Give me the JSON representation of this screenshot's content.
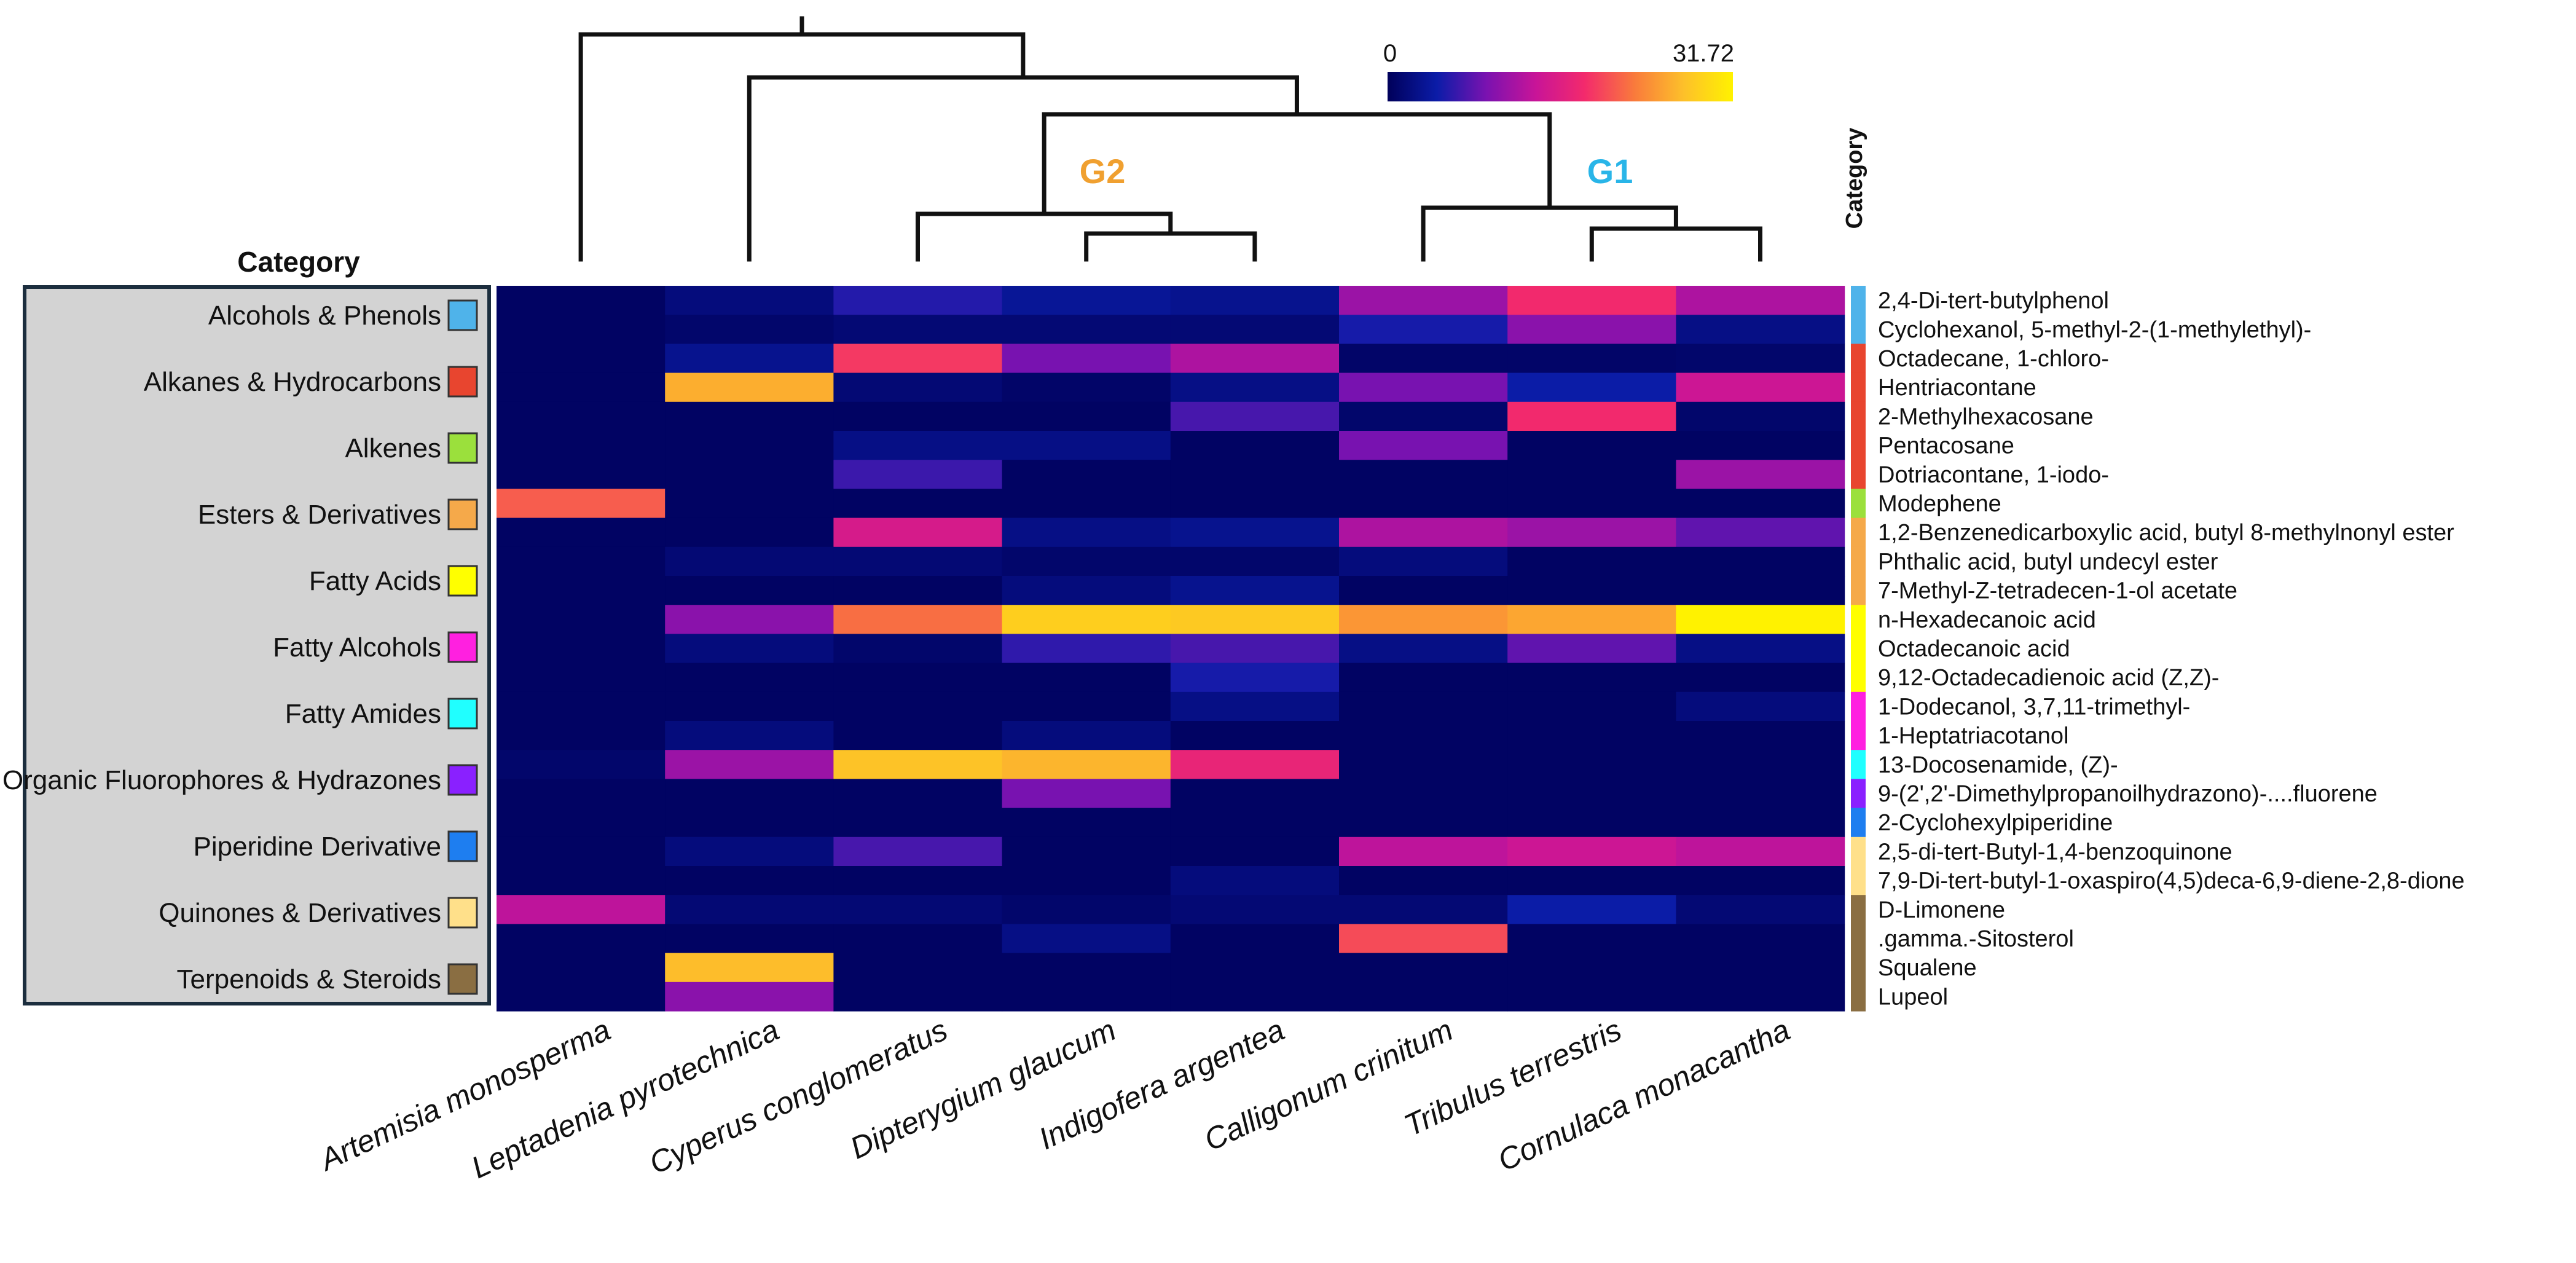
{
  "chart_data": {
    "type": "heatmap",
    "title": "",
    "colorbar": {
      "min_label": "0",
      "max_label": "31.72",
      "min": 0,
      "max": 31.72
    },
    "legend_title": "Category",
    "side_label": "Category",
    "group_labels": [
      {
        "label": "G2",
        "color": "#f0a030"
      },
      {
        "label": "G1",
        "color": "#29b5e8"
      }
    ],
    "columns": [
      "Artemisia monosperma",
      "Leptadenia pyrotechnica",
      "Cyperus conglomeratus",
      "Dipterygium glaucum",
      "Indigofera argentea",
      "Calligonum crinitum",
      "Tribulus terrestris",
      "Cornulaca monacantha"
    ],
    "rows": [
      "2,4-Di-tert-butylphenol",
      "Cyclohexanol, 5-methyl-2-(1-methylethyl)-",
      "Octadecane, 1-chloro-",
      "Hentriacontane",
      "2-Methylhexacosane",
      "Pentacosane",
      "Dotriacontane, 1-iodo-",
      "Modephene",
      "1,2-Benzenedicarboxylic  acid, butyl 8-methylnonyl  ester",
      "Phthalic acid, butyl undecyl  ester",
      "7-Methyl-Z-tetradecen-1-ol  acetate",
      "n-Hexadecanoic  acid",
      "Octadecanoic acid",
      "9,12-Octadecadienoic acid (Z,Z)-",
      "1-Dodecanol, 3,7,11-trimethyl-",
      "1-Heptatriacotanol",
      "13-Docosenamide, (Z)-",
      "9-(2',2'-Dimethylpropanoilhydrazono)-....fluorene",
      "2-Cyclohexylpiperidine",
      "2,5-di-tert-Butyl-1,4-benzoquinone",
      "7,9-Di-tert-butyl-1-oxaspiro(4,5)deca-6,9-diene-2,8-dione",
      "D-Limonene",
      ".gamma.-Sitosterol",
      "Squalene",
      "Lupeol"
    ],
    "values": [
      [
        0.5,
        2.0,
        5.5,
        3.5,
        3.0,
        11.0,
        18.0,
        12.0
      ],
      [
        0.5,
        1.0,
        1.5,
        1.5,
        1.5,
        5.0,
        10.0,
        2.5
      ],
      [
        0.5,
        3.0,
        19.0,
        9.0,
        12.0,
        0.8,
        0.8,
        1.0
      ],
      [
        0.5,
        26.0,
        1.5,
        0.8,
        2.5,
        9.0,
        4.5,
        14.0
      ],
      [
        0.5,
        0.5,
        0.5,
        0.5,
        7.0,
        1.0,
        18.0,
        1.0
      ],
      [
        0.5,
        0.5,
        2.5,
        2.5,
        0.5,
        9.0,
        0.5,
        0.5
      ],
      [
        0.5,
        0.5,
        6.5,
        0.5,
        0.5,
        0.5,
        0.5,
        11.0
      ],
      [
        21.0,
        0.5,
        0.5,
        0.5,
        0.5,
        0.5,
        0.5,
        0.5
      ],
      [
        0.5,
        0.5,
        15.0,
        2.5,
        3.0,
        12.0,
        11.0,
        8.0
      ],
      [
        0.5,
        1.5,
        1.5,
        1.0,
        1.0,
        2.0,
        0.5,
        0.5
      ],
      [
        0.5,
        0.5,
        0.5,
        2.0,
        3.0,
        0.5,
        0.5,
        0.5
      ],
      [
        0.5,
        10.0,
        22.0,
        28.5,
        28.0,
        24.5,
        25.5,
        31.7
      ],
      [
        0.5,
        2.0,
        1.0,
        6.0,
        7.0,
        2.5,
        8.0,
        2.5
      ],
      [
        0.5,
        0.5,
        0.5,
        0.5,
        5.0,
        0.5,
        0.5,
        0.5
      ],
      [
        0.5,
        0.5,
        0.5,
        0.5,
        2.5,
        0.5,
        0.5,
        2.0
      ],
      [
        0.5,
        2.0,
        0.5,
        2.0,
        0.5,
        0.5,
        0.5,
        0.5
      ],
      [
        1.0,
        11.0,
        27.5,
        26.5,
        17.0,
        0.5,
        0.5,
        0.5
      ],
      [
        0.5,
        0.5,
        0.5,
        9.0,
        0.5,
        0.5,
        0.5,
        0.5
      ],
      [
        0.5,
        0.5,
        0.5,
        0.5,
        0.5,
        0.5,
        0.5,
        0.5
      ],
      [
        0.5,
        2.0,
        7.0,
        0.5,
        0.5,
        13.0,
        14.0,
        13.0
      ],
      [
        0.5,
        0.5,
        0.5,
        0.5,
        2.0,
        0.5,
        0.5,
        0.5
      ],
      [
        13.0,
        1.5,
        1.5,
        1.0,
        1.5,
        1.5,
        4.5,
        1.5
      ],
      [
        0.5,
        0.5,
        0.5,
        2.5,
        0.5,
        20.0,
        0.5,
        0.5
      ],
      [
        0.5,
        27.0,
        0.5,
        0.5,
        0.5,
        0.5,
        0.5,
        0.5
      ],
      [
        0.5,
        10.0,
        0.5,
        0.5,
        0.5,
        0.5,
        0.5,
        0.5
      ]
    ],
    "row_category_colors": [
      "#4fb3ea",
      "#4fb3ea",
      "#e8452f",
      "#e8452f",
      "#e8452f",
      "#e8452f",
      "#e8452f",
      "#9be03c",
      "#f5a94a",
      "#f5a94a",
      "#f5a94a",
      "#ffff00",
      "#ffff00",
      "#ffff00",
      "#ff20e0",
      "#ff20e0",
      "#20ffff",
      "#8a20ff",
      "#1e7ef0",
      "#ffe08a",
      "#ffe08a",
      "#8a6e42",
      "#8a6e42",
      "#8a6e42",
      "#8a6e42"
    ],
    "categories": [
      {
        "label": "Alcohols & Phenols",
        "color": "#4fb3ea"
      },
      {
        "label": "Alkanes & Hydrocarbons",
        "color": "#e8452f"
      },
      {
        "label": "Alkenes",
        "color": "#9be03c"
      },
      {
        "label": "Esters & Derivatives",
        "color": "#f5a94a"
      },
      {
        "label": "Fatty Acids",
        "color": "#ffff00"
      },
      {
        "label": "Fatty Alcohols",
        "color": "#ff20e0"
      },
      {
        "label": "Fatty Amides",
        "color": "#20ffff"
      },
      {
        "label": "Organic Fluorophores & Hydrazones",
        "color": "#8a20ff"
      },
      {
        "label": "Piperidine Derivative",
        "color": "#1e7ef0"
      },
      {
        "label": "Quinones & Derivatives",
        "color": "#ffe08a"
      },
      {
        "label": "Terpenoids & Steroids",
        "color": "#8a6e42"
      }
    ],
    "colormap_stops": [
      "#00005a",
      "#0b1ca8",
      "#7a12b0",
      "#c81498",
      "#f32a6c",
      "#f97a3c",
      "#fdc02a",
      "#fff200"
    ]
  }
}
